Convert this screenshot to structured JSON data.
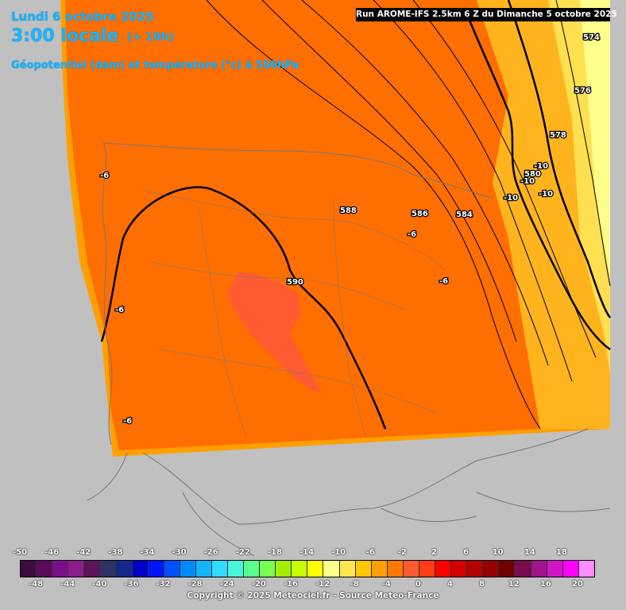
{
  "header": {
    "date": "Lundi 6 octobre 2025",
    "time": "3:00 locale",
    "lead": "(+ 19h)",
    "subtitle": "Géopotentiel (dam) et température (°c) à 500hPa",
    "run": "Run AROME-IFS 2.5km 6 Z du Dimanche 5 octobre 2025"
  },
  "footer": {
    "copyright": "Copyright © 2025 Meteociel.fr - Source Meteo-France"
  },
  "map_labels": {
    "geopotential": [
      "574",
      "576",
      "578",
      "586",
      "584",
      "588",
      "590",
      "580"
    ],
    "temperature": [
      "-6",
      "-6",
      "-6",
      "-6",
      "-6",
      "-10",
      "-10",
      "-10",
      "-10"
    ]
  },
  "legend": {
    "labels": [
      "-50",
      "-48",
      "-46",
      "-44",
      "-42",
      "-40",
      "-38",
      "-36",
      "-34",
      "-32",
      "-30",
      "-28",
      "-26",
      "-24",
      "-22",
      "-20",
      "-18",
      "-16",
      "-14",
      "-12",
      "-10",
      "-8",
      "-6",
      "-4",
      "-2",
      "0",
      "2",
      "4",
      "6",
      "8",
      "10",
      "12",
      "14",
      "16",
      "18",
      "20"
    ],
    "colors": [
      "#3c0d3c",
      "#5a0a5a",
      "#7a0f8c",
      "#8c1e8c",
      "#5a145a",
      "#2d3264",
      "#14288c",
      "#0000c8",
      "#0014ff",
      "#0050ff",
      "#008cff",
      "#14b4ff",
      "#32dcff",
      "#46f5dc",
      "#5aff8c",
      "#78ff50",
      "#a0f000",
      "#c8ff00",
      "#ffff00",
      "#ffff8c",
      "#ffe650",
      "#ffc800",
      "#ffa000",
      "#ff7800",
      "#ff5a32",
      "#ff3c14",
      "#ff0000",
      "#d20000",
      "#b40000",
      "#960000",
      "#6e0000",
      "#780a50",
      "#a0148c",
      "#d214c8",
      "#ff00ff",
      "#ff8cff"
    ]
  },
  "colors": {
    "header_text": "#1ab4ff",
    "background": "#c0c0c0"
  }
}
